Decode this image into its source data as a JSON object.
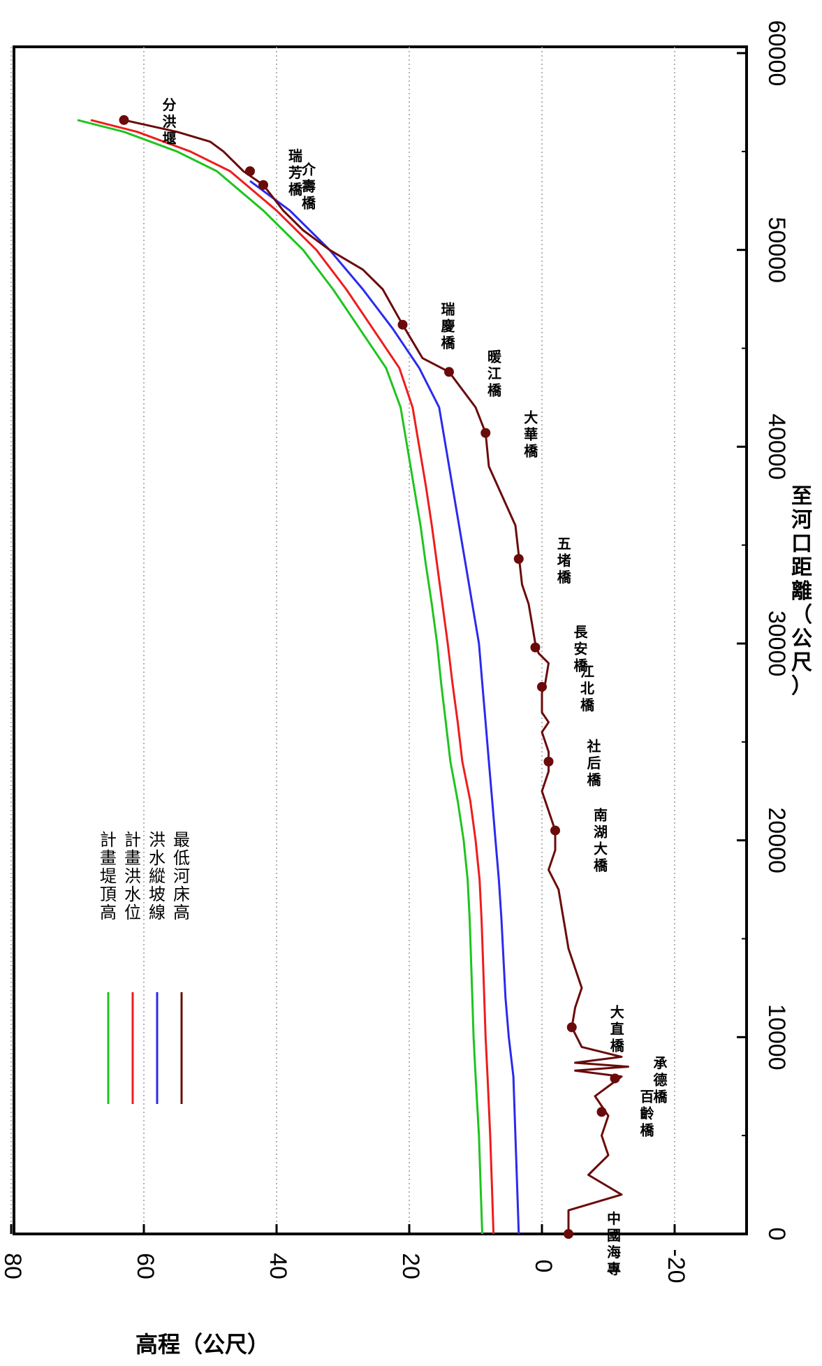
{
  "chart_data": {
    "type": "line",
    "orientation": "rotated-90-cw",
    "xlabel": "至河口距離（公尺）",
    "ylabel": "高程（公尺）",
    "xlim": [
      0,
      60000
    ],
    "ylim": [
      -30,
      80
    ],
    "x_ticks": [
      "0",
      "10000",
      "20000",
      "30000",
      "40000",
      "50000",
      "60000"
    ],
    "y_ticks": [
      "-20",
      "0",
      "20",
      "40",
      "60",
      "80"
    ],
    "grid": "horizontal-dotted",
    "legend_position": "bottom-left",
    "colors": {
      "green": "#1ec41e",
      "red": "#ee1c1c",
      "blue": "#2a2aee",
      "maroon": "#6a0a0a"
    },
    "series": [
      {
        "name": "計畫堤頂高",
        "color": "#1ec41e",
        "x": [
          0,
          2000,
          5000,
          8000,
          10000,
          12000,
          14000,
          16000,
          18000,
          20000,
          22000,
          24000,
          26000,
          28000,
          30000,
          32000,
          34000,
          36000,
          38000,
          40000,
          42000,
          44000,
          46000,
          48000,
          50000,
          52000,
          54000,
          55000,
          56000,
          56600
        ],
        "y": [
          9,
          9.2,
          9.5,
          10,
          10.3,
          10.5,
          10.7,
          10.9,
          11.2,
          11.8,
          12.7,
          13.8,
          14.5,
          15.2,
          15.8,
          16.6,
          17.5,
          18.3,
          19.3,
          20.3,
          21.3,
          23.5,
          27.5,
          31.5,
          36,
          42,
          49,
          55,
          63,
          70
        ]
      },
      {
        "name": "計畫洪水位",
        "color": "#ee1c1c",
        "x": [
          0,
          2000,
          5000,
          8000,
          10000,
          12000,
          14000,
          16000,
          18000,
          20000,
          22000,
          24000,
          26000,
          28000,
          30000,
          32000,
          34000,
          36000,
          38000,
          40000,
          42000,
          44000,
          46000,
          48000,
          50000,
          52000,
          54000,
          55000,
          56000,
          56600
        ],
        "y": [
          7.3,
          7.5,
          7.8,
          8.2,
          8.5,
          8.7,
          8.9,
          9.1,
          9.4,
          10,
          10.8,
          12,
          12.7,
          13.5,
          14.2,
          15,
          15.8,
          16.6,
          17.5,
          18.5,
          19.5,
          21.5,
          25.5,
          29.5,
          34,
          40,
          47,
          53,
          61,
          68
        ]
      },
      {
        "name": "洪水縱坡線",
        "color": "#2a2aee",
        "x": [
          0,
          2000,
          5000,
          8000,
          10000,
          12000,
          14000,
          16000,
          18000,
          20000,
          22000,
          24000,
          26000,
          28000,
          30000,
          32000,
          34000,
          36000,
          38000,
          40000,
          42000,
          44000,
          46000,
          48000,
          50000,
          52000,
          53500
        ],
        "y": [
          3.5,
          3.7,
          4,
          4.3,
          5,
          5.5,
          5.8,
          6.1,
          6.5,
          7,
          7.5,
          8,
          8.5,
          9,
          9.5,
          10.5,
          11.5,
          12.5,
          13.5,
          14.5,
          15.5,
          18.5,
          22.5,
          27,
          32,
          38,
          44
        ]
      },
      {
        "name": "最低河床高",
        "color": "#6a0a0a",
        "x": [
          0,
          1200,
          2000,
          3000,
          4000,
          5000,
          6000,
          7000,
          8000,
          8300,
          8500,
          8700,
          9000,
          9500,
          10500,
          11500,
          12500,
          13500,
          14500,
          15500,
          16500,
          17500,
          18500,
          19500,
          20500,
          21500,
          22500,
          23500,
          24500,
          25500,
          26000,
          26500,
          27000,
          27500,
          28000,
          29000,
          29500,
          30000,
          31000,
          32000,
          33000,
          34500,
          36000,
          37500,
          39000,
          40700,
          42000,
          43800,
          44500,
          46200,
          48000,
          49000,
          50000,
          51000,
          52000,
          53300,
          54000,
          55000,
          55500,
          56000,
          56600
        ],
        "y": [
          -4,
          -4,
          -12,
          -7,
          -10,
          -9,
          -10,
          -8,
          -12,
          -5,
          -13,
          -5,
          -12,
          -6,
          -4.5,
          -5,
          -6,
          -5,
          -4,
          -3.5,
          -3,
          -2.5,
          -1,
          -2,
          -2,
          -1,
          0,
          -1,
          -1,
          0,
          -1,
          0,
          0,
          0,
          -0.5,
          -1,
          0.5,
          1,
          1.5,
          2,
          3,
          3.5,
          4,
          6,
          8,
          8.5,
          10,
          14,
          18,
          21,
          24,
          27,
          32,
          36,
          39,
          42,
          45,
          48,
          50,
          55,
          63
        ]
      }
    ],
    "annotations": [
      {
        "label": "中國海專",
        "x": 0,
        "y": -4
      },
      {
        "label": "百齡橋",
        "x": 6200,
        "y": -9
      },
      {
        "label": "承德橋",
        "x": 7900,
        "y": -11
      },
      {
        "label": "大直橋",
        "x": 10500,
        "y": -4.5
      },
      {
        "label": "南湖大橋",
        "x": 20500,
        "y": -2
      },
      {
        "label": "社后橋",
        "x": 24000,
        "y": -1
      },
      {
        "label": "江北橋",
        "x": 27800,
        "y": 0
      },
      {
        "label": "長安橋",
        "x": 29800,
        "y": 1
      },
      {
        "label": "五堵橋",
        "x": 34300,
        "y": 3.5
      },
      {
        "label": "大華橋",
        "x": 40700,
        "y": 8.5
      },
      {
        "label": "暖江橋",
        "x": 43800,
        "y": 14
      },
      {
        "label": "瑞慶橋",
        "x": 46200,
        "y": 21
      },
      {
        "label": "介壽橋",
        "x": 53300,
        "y": 42
      },
      {
        "label": "瑞芳橋",
        "x": 54000,
        "y": 44
      },
      {
        "label": "分洪堰",
        "x": 56600,
        "y": 63
      }
    ]
  }
}
